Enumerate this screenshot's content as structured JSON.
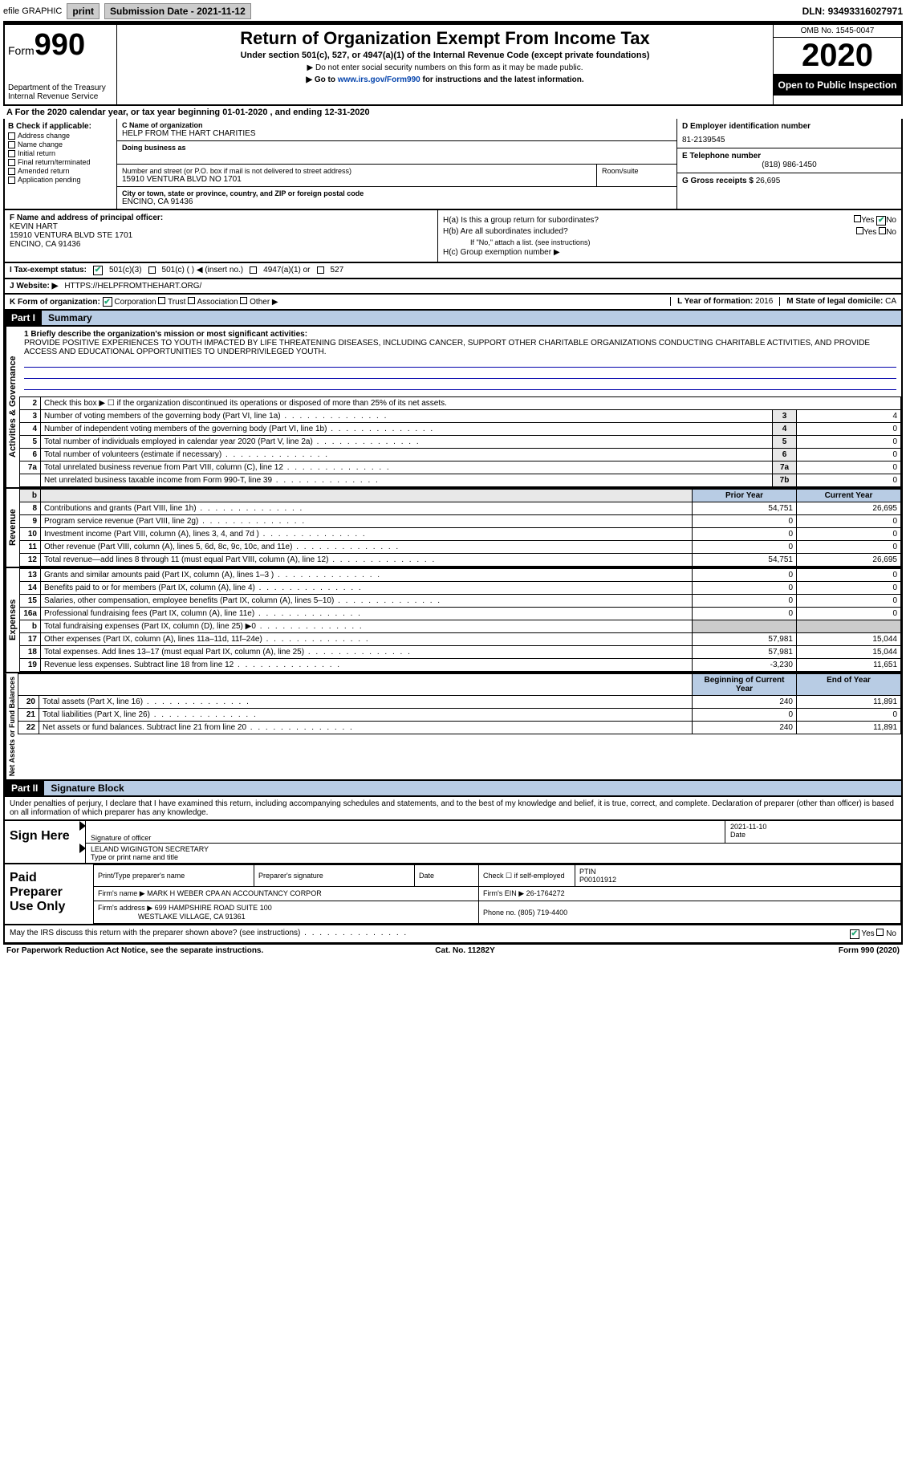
{
  "topbar": {
    "efile": "efile GRAPHIC",
    "print": "print",
    "subdate_lbl": "Submission Date - ",
    "subdate": "2021-11-12",
    "dln_lbl": "DLN: ",
    "dln": "93493316027971"
  },
  "header": {
    "form_lbl": "Form",
    "form_num": "990",
    "dept": "Department of the Treasury\nInternal Revenue Service",
    "title": "Return of Organization Exempt From Income Tax",
    "subtitle": "Under section 501(c), 527, or 4947(a)(1) of the Internal Revenue Code (except private foundations)",
    "note1": "▶ Do not enter social security numbers on this form as it may be made public.",
    "note2_pre": "▶ Go to ",
    "note2_link": "www.irs.gov/Form990",
    "note2_post": " for instructions and the latest information.",
    "omb": "OMB No. 1545-0047",
    "year": "2020",
    "open": "Open to Public Inspection"
  },
  "A": {
    "line": "A For the 2020 calendar year, or tax year beginning 01-01-2020    , and ending 12-31-2020"
  },
  "B": {
    "hdr": "B Check if applicable:",
    "addr": "Address change",
    "name": "Name change",
    "init": "Initial return",
    "final": "Final return/terminated",
    "amend": "Amended return",
    "app": "Application pending"
  },
  "C": {
    "name_lbl": "C Name of organization",
    "name": "HELP FROM THE HART CHARITIES",
    "dba_lbl": "Doing business as",
    "dba": "",
    "street_lbl": "Number and street (or P.O. box if mail is not delivered to street address)",
    "street": "15910 VENTURA BLVD NO 1701",
    "room_lbl": "Room/suite",
    "city_lbl": "City or town, state or province, country, and ZIP or foreign postal code",
    "city": "ENCINO, CA  91436"
  },
  "D": {
    "lbl": "D Employer identification number",
    "val": "81-2139545"
  },
  "E": {
    "lbl": "E Telephone number",
    "val": "(818) 986-1450"
  },
  "G": {
    "lbl": "G Gross receipts $ ",
    "val": "26,695"
  },
  "F": {
    "lbl": "F  Name and address of principal officer:",
    "name": "KEVIN HART",
    "addr1": "15910 VENTURA BLVD STE 1701",
    "addr2": "ENCINO, CA  91436"
  },
  "H": {
    "a": "H(a)  Is this a group return for subordinates?",
    "b": "H(b)  Are all subordinates included?",
    "bnote": "If \"No,\" attach a list. (see instructions)",
    "c": "H(c)  Group exemption number ▶",
    "yes": "Yes",
    "no": "No"
  },
  "I": {
    "lbl": "I    Tax-exempt status:",
    "o1": "501(c)(3)",
    "o2": "501(c) (  ) ◀ (insert no.)",
    "o3": "4947(a)(1) or",
    "o4": "527"
  },
  "J": {
    "lbl": "J   Website: ▶ ",
    "val": "HTTPS://HELPFROMTHEHART.ORG/"
  },
  "K": {
    "lbl": "K Form of organization:",
    "o1": "Corporation",
    "o2": "Trust",
    "o3": "Association",
    "o4": "Other ▶"
  },
  "L": {
    "lbl": "L Year of formation: ",
    "val": "2016"
  },
  "M": {
    "lbl": "M State of legal domicile: ",
    "val": "CA"
  },
  "part1": {
    "hdr": "Part I",
    "title": "Summary"
  },
  "mission": {
    "q": "1  Briefly describe the organization's mission or most significant activities:",
    "text": "PROVIDE POSITIVE EXPERIENCES TO YOUTH IMPACTED BY LIFE THREATENING DISEASES, INCLUDING CANCER, SUPPORT OTHER CHARITABLE ORGANIZATIONS CONDUCTING CHARITABLE ACTIVITIES, AND PROVIDE ACCESS AND EDUCATIONAL OPPORTUNITIES TO UNDERPRIVILEGED YOUTH."
  },
  "gov": {
    "l2": "Check this box ▶ ☐ if the organization discontinued its operations or disposed of more than 25% of its net assets.",
    "rows": [
      {
        "n": "3",
        "t": "Number of voting members of the governing body (Part VI, line 1a)",
        "c": "3",
        "v": "4"
      },
      {
        "n": "4",
        "t": "Number of independent voting members of the governing body (Part VI, line 1b)",
        "c": "4",
        "v": "0"
      },
      {
        "n": "5",
        "t": "Total number of individuals employed in calendar year 2020 (Part V, line 2a)",
        "c": "5",
        "v": "0"
      },
      {
        "n": "6",
        "t": "Total number of volunteers (estimate if necessary)",
        "c": "6",
        "v": "0"
      },
      {
        "n": "7a",
        "t": "Total unrelated business revenue from Part VIII, column (C), line 12",
        "c": "7a",
        "v": "0"
      },
      {
        "n": "",
        "t": "Net unrelated business taxable income from Form 990-T, line 39",
        "c": "7b",
        "v": "0"
      }
    ]
  },
  "fincols": {
    "prior": "Prior Year",
    "curr": "Current Year",
    "beg": "Beginning of Current Year",
    "end": "End of Year"
  },
  "rev": [
    {
      "n": "8",
      "t": "Contributions and grants (Part VIII, line 1h)",
      "p": "54,751",
      "c": "26,695"
    },
    {
      "n": "9",
      "t": "Program service revenue (Part VIII, line 2g)",
      "p": "0",
      "c": "0"
    },
    {
      "n": "10",
      "t": "Investment income (Part VIII, column (A), lines 3, 4, and 7d )",
      "p": "0",
      "c": "0"
    },
    {
      "n": "11",
      "t": "Other revenue (Part VIII, column (A), lines 5, 6d, 8c, 9c, 10c, and 11e)",
      "p": "0",
      "c": "0"
    },
    {
      "n": "12",
      "t": "Total revenue—add lines 8 through 11 (must equal Part VIII, column (A), line 12)",
      "p": "54,751",
      "c": "26,695"
    }
  ],
  "exp": [
    {
      "n": "13",
      "t": "Grants and similar amounts paid (Part IX, column (A), lines 1–3 )",
      "p": "0",
      "c": "0"
    },
    {
      "n": "14",
      "t": "Benefits paid to or for members (Part IX, column (A), line 4)",
      "p": "0",
      "c": "0"
    },
    {
      "n": "15",
      "t": "Salaries, other compensation, employee benefits (Part IX, column (A), lines 5–10)",
      "p": "0",
      "c": "0"
    },
    {
      "n": "16a",
      "t": "Professional fundraising fees (Part IX, column (A), line 11e)",
      "p": "0",
      "c": "0"
    },
    {
      "n": "b",
      "t": "Total fundraising expenses (Part IX, column (D), line 25) ▶0",
      "p": "",
      "c": ""
    },
    {
      "n": "17",
      "t": "Other expenses (Part IX, column (A), lines 11a–11d, 11f–24e)",
      "p": "57,981",
      "c": "15,044"
    },
    {
      "n": "18",
      "t": "Total expenses. Add lines 13–17 (must equal Part IX, column (A), line 25)",
      "p": "57,981",
      "c": "15,044"
    },
    {
      "n": "19",
      "t": "Revenue less expenses. Subtract line 18 from line 12",
      "p": "-3,230",
      "c": "11,651"
    }
  ],
  "net": [
    {
      "n": "20",
      "t": "Total assets (Part X, line 16)",
      "p": "240",
      "c": "11,891"
    },
    {
      "n": "21",
      "t": "Total liabilities (Part X, line 26)",
      "p": "0",
      "c": "0"
    },
    {
      "n": "22",
      "t": "Net assets or fund balances. Subtract line 21 from line 20",
      "p": "240",
      "c": "11,891"
    }
  ],
  "sidelabels": {
    "gov": "Activities & Governance",
    "rev": "Revenue",
    "exp": "Expenses",
    "net": "Net Assets or Fund Balances"
  },
  "part2": {
    "hdr": "Part II",
    "title": "Signature Block"
  },
  "penalty": "Under penalties of perjury, I declare that I have examined this return, including accompanying schedules and statements, and to the best of my knowledge and belief, it is true, correct, and complete. Declaration of preparer (other than officer) is based on all information of which preparer has any knowledge.",
  "sign": {
    "here": "Sign Here",
    "sigoff": "Signature of officer",
    "date": "Date",
    "dateval": "2021-11-10",
    "name": "LELAND WIGINGTON  SECRETARY",
    "namelbl": "Type or print name and title"
  },
  "paid": {
    "lbl": "Paid Preparer Use Only",
    "pname": "Print/Type preparer's name",
    "psig": "Preparer's signature",
    "pdate": "Date",
    "pse": "Check ☐ if self-employed",
    "ptin_lbl": "PTIN",
    "ptin": "P00101912",
    "firm_lbl": "Firm's name    ▶ ",
    "firm": "MARK H WEBER CPA AN ACCOUNTANCY CORPOR",
    "ein_lbl": "Firm's EIN ▶ ",
    "ein": "26-1764272",
    "addr_lbl": "Firm's address ▶ ",
    "addr": "699 HAMPSHIRE ROAD SUITE 100",
    "addr2": "WESTLAKE VILLAGE, CA  91361",
    "phone_lbl": "Phone no. ",
    "phone": "(805) 719-4400"
  },
  "discuss": "May the IRS discuss this return with the preparer shown above? (see instructions)",
  "footer": {
    "l": "For Paperwork Reduction Act Notice, see the separate instructions.",
    "m": "Cat. No. 11282Y",
    "r": "Form 990 (2020)"
  },
  "colors": {
    "blue_hdr": "#b8cce4",
    "link": "#0645ad",
    "check": "#2a7a2a"
  }
}
